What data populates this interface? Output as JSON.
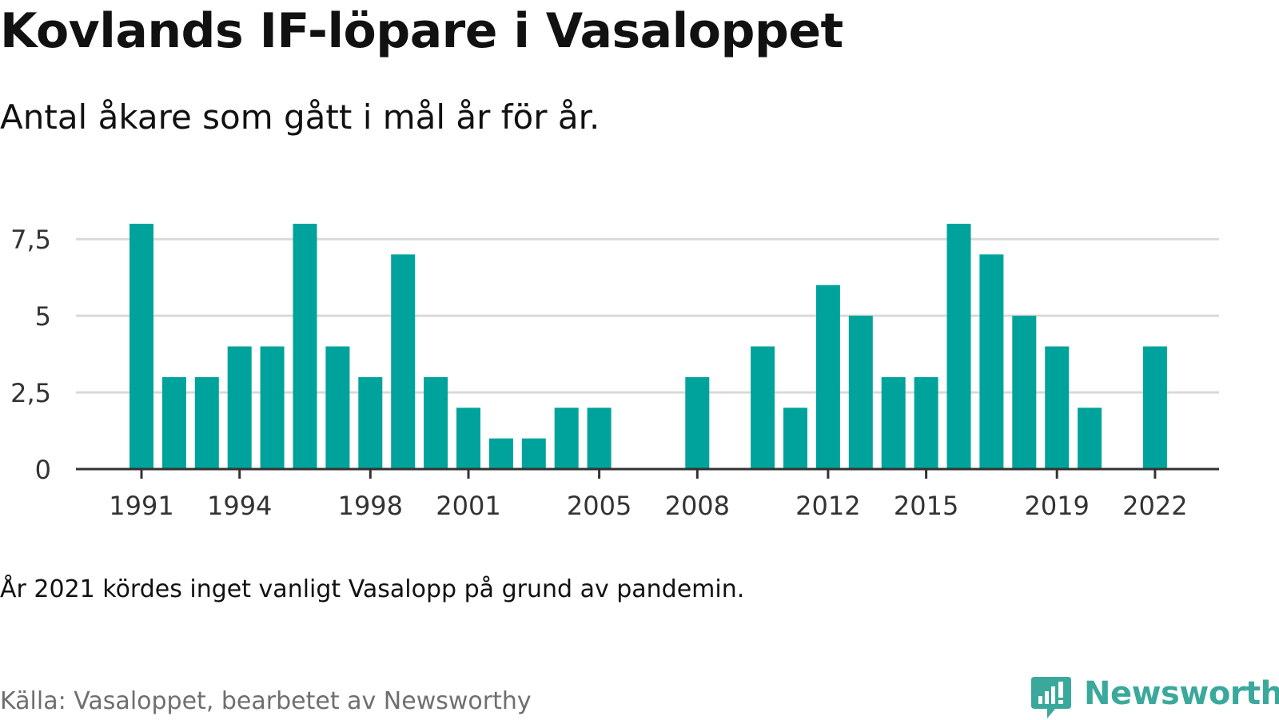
{
  "header": {
    "title": "Kovlands IF-löpare i Vasaloppet",
    "subtitle": "Antal åkare som gått i mål år för år."
  },
  "footer": {
    "note": "År 2021 kördes inget vanligt Vasalopp på grund av pandemin.",
    "source": "Källa: Vasaloppet, bearbetet av Newsworthy",
    "logo_text": "Newsworthy"
  },
  "colors": {
    "bar": "#00a39b",
    "grid": "#d9d9d9",
    "axis": "#333333",
    "tick_text": "#333333",
    "logo": "#3aa99c"
  },
  "chart_data": {
    "type": "bar",
    "categories": [
      "1991",
      "1992",
      "1993",
      "1994",
      "1995",
      "1996",
      "1997",
      "1998",
      "1999",
      "2000",
      "2001",
      "2002",
      "2003",
      "2004",
      "2005",
      "2006",
      "2007",
      "2008",
      "2009",
      "2010",
      "2011",
      "2012",
      "2013",
      "2014",
      "2015",
      "2016",
      "2017",
      "2018",
      "2019",
      "2020",
      "2021",
      "2022"
    ],
    "values": [
      8,
      3,
      3,
      4,
      4,
      8,
      4,
      3,
      7,
      3,
      2,
      1,
      1,
      2,
      2,
      0,
      0,
      3,
      0,
      4,
      2,
      6,
      5,
      3,
      3,
      8,
      7,
      5,
      4,
      2,
      0,
      4
    ],
    "x_tick_labels": [
      "1991",
      "1994",
      "1998",
      "2001",
      "2005",
      "2008",
      "2012",
      "2015",
      "2019",
      "2022"
    ],
    "y_ticks": [
      0,
      2.5,
      5,
      7.5
    ],
    "y_tick_labels": [
      "0",
      "2,5",
      "5",
      "7,5"
    ],
    "ylim": [
      0,
      8
    ],
    "grid": true,
    "legend": "none"
  }
}
